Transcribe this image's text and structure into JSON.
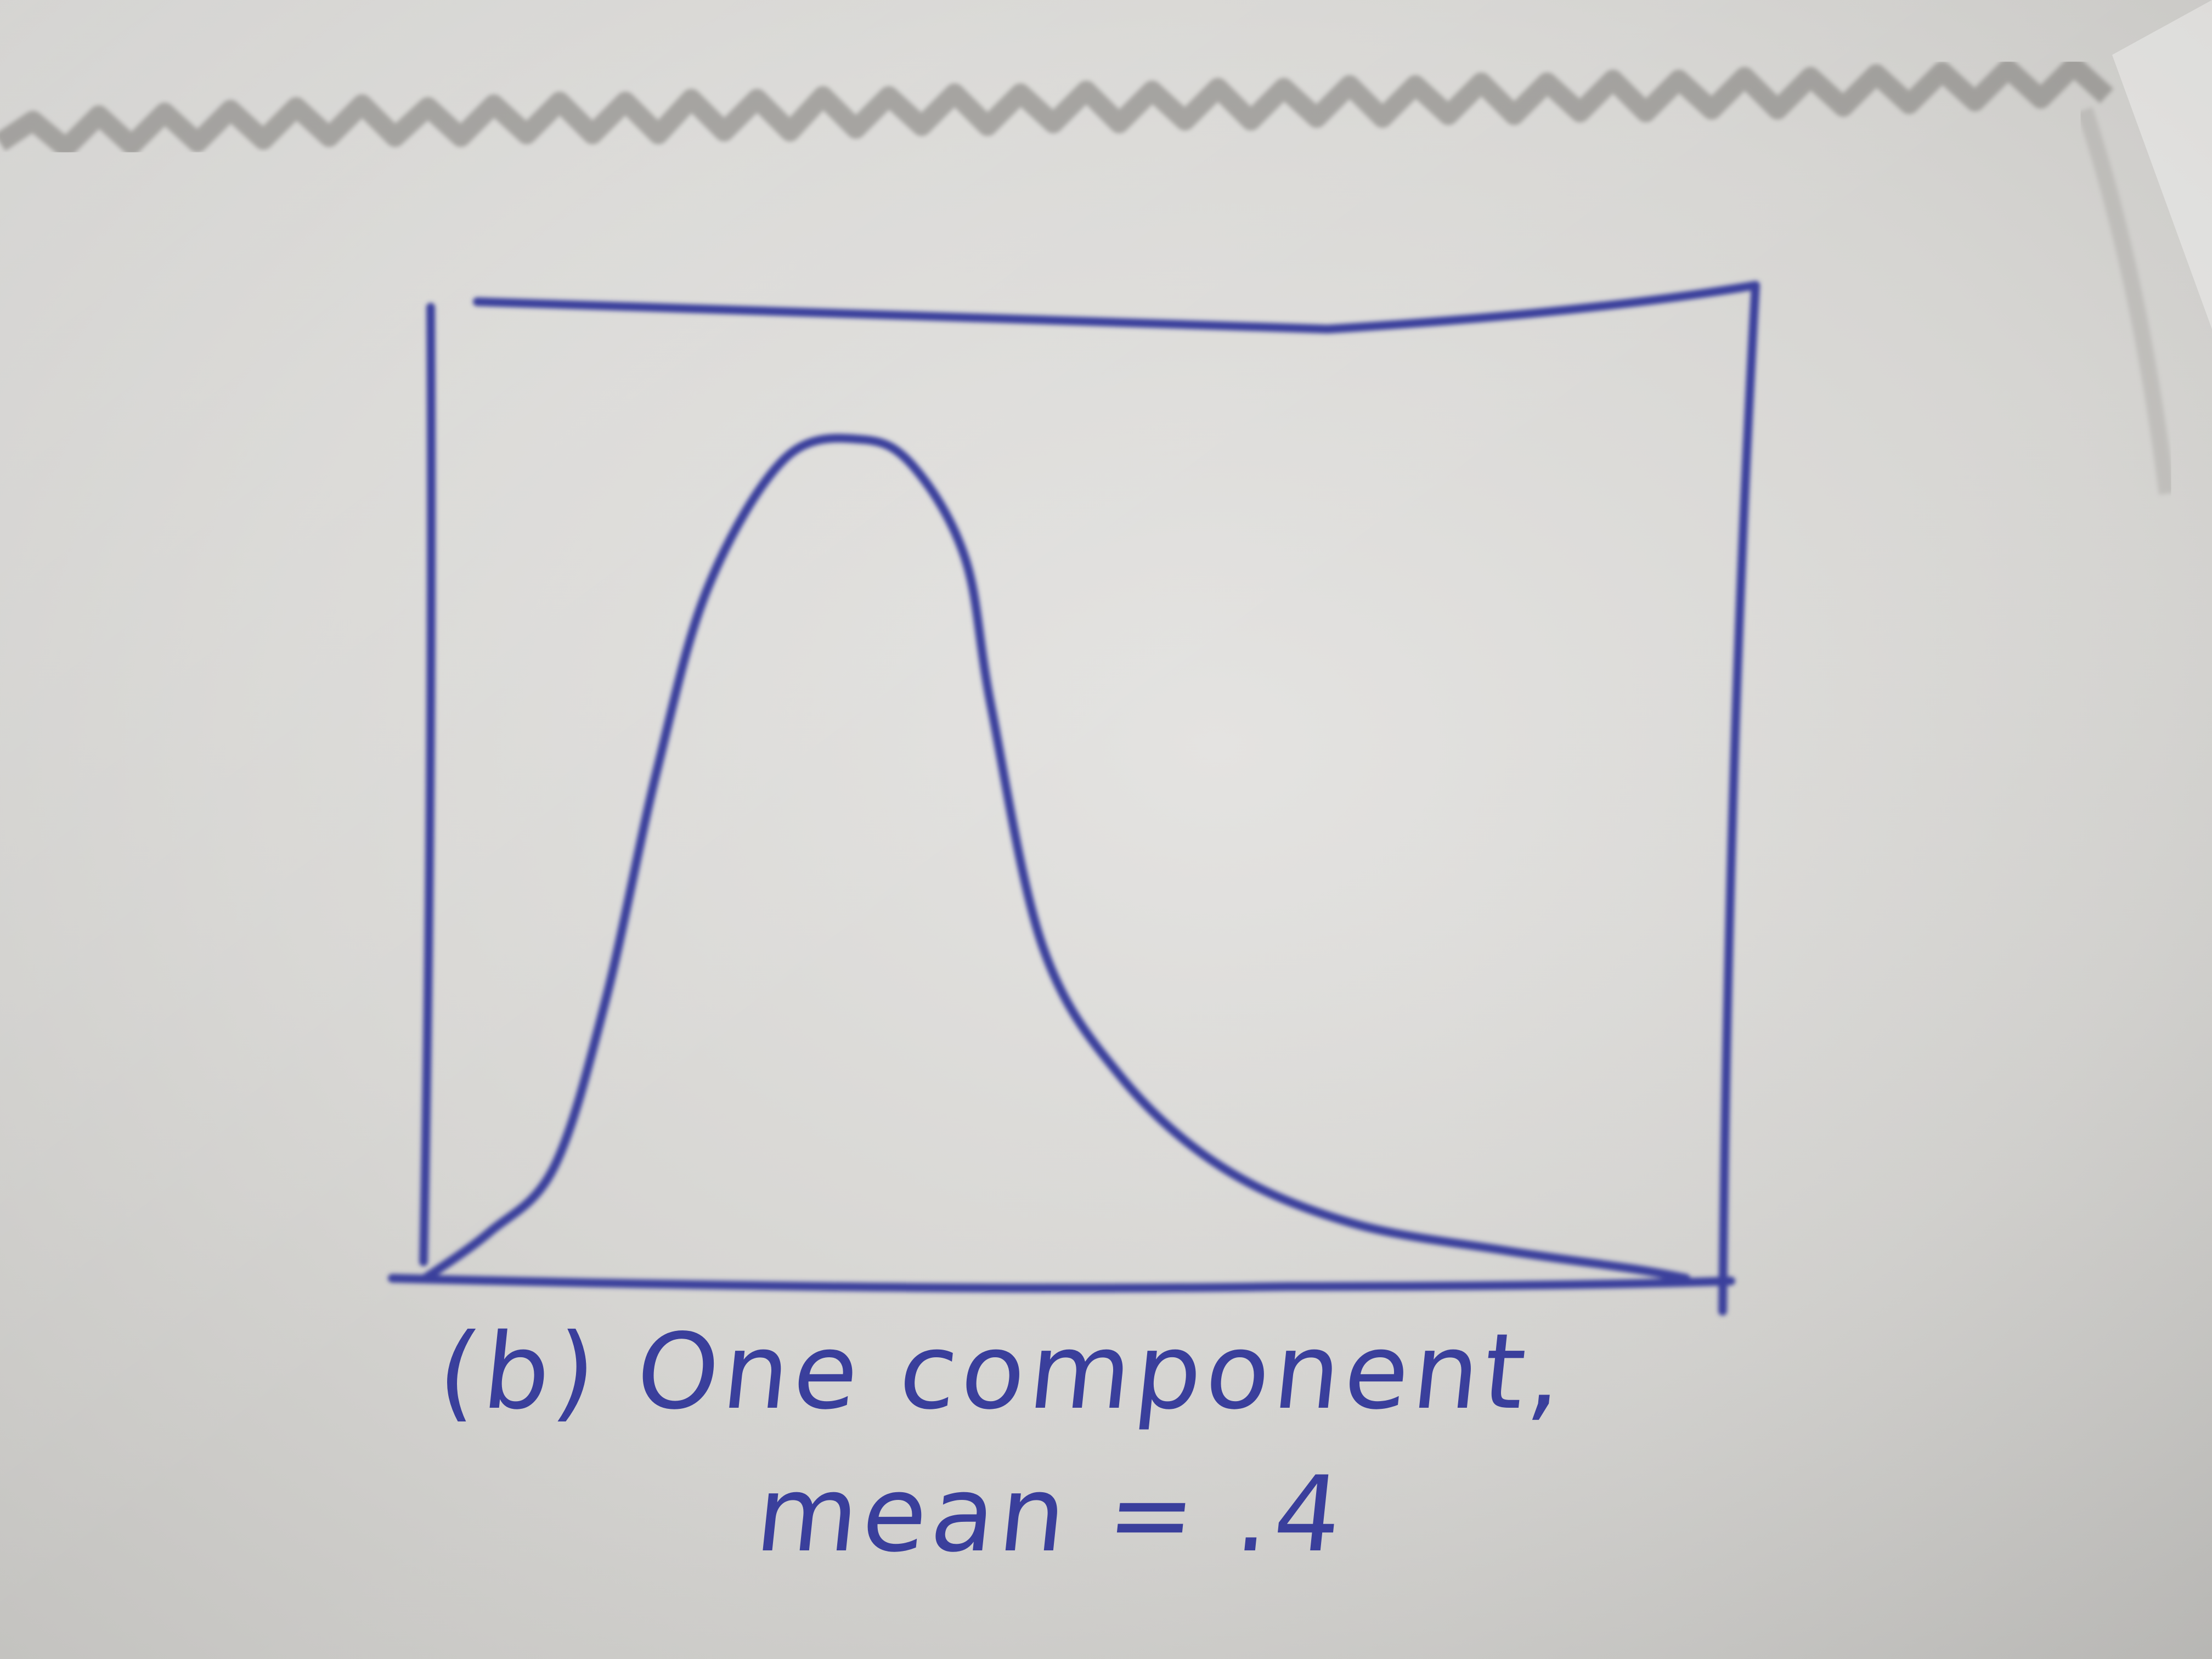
{
  "photo": {
    "subject": "hand-drawn sketch on crumpled paper",
    "ink_color": "#3a3f9c",
    "paper_color": "#dcdbd8"
  },
  "sketch": {
    "caption_line_1": "(b) One component,",
    "caption_line_2": "mean = .4"
  },
  "chart_data": {
    "type": "line",
    "title": "",
    "xlabel": "",
    "ylabel": "",
    "xlim": [
      0,
      1
    ],
    "ylim": [
      0,
      1
    ],
    "grid": false,
    "series": [
      {
        "x": [
          0,
          0.05,
          0.1,
          0.14,
          0.18,
          0.22,
          0.28,
          0.34,
          0.38,
          0.42,
          0.44,
          0.48,
          0.54,
          0.62,
          0.72,
          0.84,
          0.94,
          0.98
        ],
        "values": [
          0.0,
          0.05,
          0.12,
          0.3,
          0.55,
          0.75,
          0.89,
          0.91,
          0.88,
          0.78,
          0.62,
          0.36,
          0.22,
          0.12,
          0.06,
          0.03,
          0.01,
          0.0
        ]
      }
    ]
  }
}
